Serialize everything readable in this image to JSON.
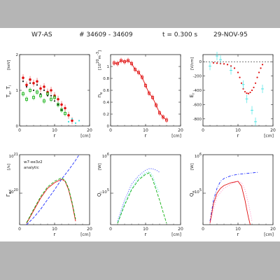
{
  "header": {
    "device": "W7-AS",
    "shot": "# 34609 - 34609",
    "time": "t = 0.300 s",
    "date": "29-NOV-95"
  },
  "chart_data": [
    {
      "id": "temp",
      "type": "scatter",
      "ylabel_main": "T",
      "ylabel_sub1": "e",
      "ylabel_mid": ", T",
      "ylabel_sub2": "i",
      "yunit": "[keV]",
      "xlabel": "r",
      "xunit": "[cm]",
      "xlim": [
        0,
        20
      ],
      "ylim": [
        0,
        2
      ],
      "xticks": [
        0,
        10,
        20
      ],
      "yticks": [
        0,
        1,
        2
      ],
      "series": [
        {
          "color": "#e01010",
          "marker": "circle",
          "x": [
            1,
            2,
            3,
            4,
            5,
            6,
            7,
            8,
            9,
            10,
            11,
            12,
            13,
            14,
            15
          ],
          "y": [
            1.35,
            1.15,
            1.3,
            1.2,
            1.25,
            1.05,
            1.1,
            0.95,
            1.0,
            0.85,
            0.75,
            0.6,
            0.5,
            0.3,
            0.15
          ]
        },
        {
          "color": "#10b010",
          "marker": "square",
          "x": [
            1,
            2,
            3,
            4,
            5,
            6,
            7,
            8,
            9,
            10,
            11,
            12,
            13
          ],
          "y": [
            0.9,
            0.75,
            1.0,
            0.8,
            0.95,
            0.85,
            0.7,
            0.9,
            0.75,
            0.8,
            0.6,
            0.45,
            0.35
          ]
        },
        {
          "color": "#222222",
          "marker": "dot",
          "x": [
            1,
            2,
            3,
            4,
            5,
            6,
            7,
            8,
            9,
            10,
            11,
            12
          ],
          "y": [
            1.25,
            1.1,
            1.2,
            1.0,
            1.15,
            0.9,
            1.0,
            0.85,
            0.85,
            0.7,
            0.6,
            0.45
          ]
        },
        {
          "color": "#30e0e0",
          "marker": "dot",
          "x": [
            14,
            15,
            16,
            17
          ],
          "y": [
            0.12,
            0.2,
            0.08,
            0.15
          ]
        }
      ]
    },
    {
      "id": "density",
      "type": "line",
      "ylabel_main": "n",
      "ylabel_sub1": "e",
      "yunit": "[10",
      "yunit_exp": "20",
      "yunit_tail": "m",
      "yunit_tail_exp": "-3",
      "yunit_close": "]",
      "xlabel": "r",
      "xunit": "[cm]",
      "xlim": [
        0,
        20
      ],
      "ylim": [
        0,
        1.2
      ],
      "xticks": [
        0,
        10,
        20
      ],
      "yticks": [
        0,
        0.2,
        0.4,
        0.6,
        0.8,
        1
      ],
      "series": [
        {
          "color": "#e01010",
          "marker": "square",
          "x": [
            1,
            2,
            3,
            4,
            5,
            6,
            7,
            8,
            9,
            10,
            11,
            12,
            13,
            14,
            15,
            16
          ],
          "y": [
            1.06,
            1.05,
            1.1,
            1.08,
            1.1,
            1.05,
            0.95,
            0.9,
            0.82,
            0.68,
            0.55,
            0.48,
            0.35,
            0.22,
            0.15,
            0.1
          ]
        }
      ]
    },
    {
      "id": "efield",
      "type": "scatter",
      "ylabel_main": "E",
      "ylabel_sub1": "r",
      "yunit": "[V/cm]",
      "xlabel": "r",
      "xunit": "[cm]",
      "xlim": [
        0,
        20
      ],
      "ylim": [
        -900,
        100
      ],
      "xticks": [
        0,
        10,
        20
      ],
      "yticks": [
        -800,
        -600,
        -400,
        -200,
        0
      ],
      "reference_line": 0,
      "series": [
        {
          "color": "#e01010",
          "marker": "dot",
          "x": [
            3,
            4,
            5,
            6,
            7,
            8,
            9,
            10,
            10.5,
            11,
            11.5,
            12,
            12.5,
            13,
            13.5,
            14,
            14.5,
            15,
            15.5,
            16,
            16.5,
            17
          ],
          "y": [
            -15,
            -20,
            -25,
            -30,
            -40,
            -60,
            -90,
            -150,
            -220,
            -300,
            -380,
            -420,
            -440,
            -445,
            -430,
            -400,
            -360,
            -300,
            -220,
            -150,
            -90,
            -40
          ]
        },
        {
          "color": "#30e0e0",
          "marker": "cross",
          "x": [
            2,
            4,
            5,
            8,
            11.5,
            12.5,
            14,
            15,
            17
          ],
          "y": [
            -60,
            80,
            30,
            -120,
            -320,
            -520,
            -680,
            -840,
            -380
          ]
        }
      ]
    },
    {
      "id": "gamma",
      "type": "line",
      "ylabel_main": "Γ",
      "ylabel_sub1": "e,i",
      "yunit": "[/s]",
      "ytop": "10",
      "ytop_exp": "21",
      "ymid": "10",
      "ymid_exp": "20",
      "xlabel": "r",
      "xunit": "[cm]",
      "xlim": [
        0,
        20
      ],
      "ylim": [
        0,
        1
      ],
      "xticks": [
        0,
        10,
        20
      ],
      "legend_lines": [
        "w7-ee3z2",
        "analytic"
      ],
      "series": [
        {
          "color": "#e01010",
          "style": "solid",
          "x": [
            2,
            4,
            6,
            8,
            10,
            12,
            13,
            14,
            15,
            16
          ],
          "y": [
            0.02,
            0.2,
            0.38,
            0.52,
            0.6,
            0.65,
            0.62,
            0.5,
            0.3,
            0.05
          ]
        },
        {
          "color": "#10b010",
          "style": "dashed",
          "x": [
            2,
            4,
            6,
            8,
            10,
            12,
            13,
            14,
            15,
            16
          ],
          "y": [
            0.03,
            0.22,
            0.4,
            0.54,
            0.62,
            0.67,
            0.63,
            0.52,
            0.32,
            0.08
          ]
        },
        {
          "color": "#2030ff",
          "style": "dashed",
          "x": [
            2,
            4,
            6,
            8,
            10,
            12,
            14,
            16,
            17
          ],
          "y": [
            0.0,
            0.1,
            0.22,
            0.36,
            0.5,
            0.65,
            0.78,
            0.92,
            1.0
          ]
        }
      ]
    },
    {
      "id": "qi",
      "type": "line",
      "ylabel_main": "Q",
      "ylabel_sub1": "i",
      "yunit": "[W]",
      "ytop": "10",
      "ytop_exp": "6",
      "ymid": "10",
      "ymid_exp": "5",
      "xlabel": "r",
      "xunit": "[cm]",
      "xlim": [
        0,
        20
      ],
      "ylim": [
        0,
        1
      ],
      "xticks": [
        0,
        10,
        20
      ],
      "series": [
        {
          "color": "#2030ff",
          "style": "dotted",
          "x": [
            2,
            4,
            6,
            8,
            10,
            11,
            12,
            13,
            14
          ],
          "y": [
            0.05,
            0.35,
            0.58,
            0.7,
            0.78,
            0.8,
            0.8,
            0.78,
            0.75
          ]
        },
        {
          "color": "#30e0e0",
          "style": "dotted",
          "x": [
            2,
            4,
            6,
            8,
            10,
            11,
            12,
            13,
            14
          ],
          "y": [
            0.03,
            0.3,
            0.52,
            0.66,
            0.74,
            0.76,
            0.7,
            0.55,
            0.45
          ]
        },
        {
          "color": "#10b010",
          "style": "dashed",
          "x": [
            2,
            4,
            6,
            8,
            10,
            11,
            12,
            13,
            14,
            15,
            16
          ],
          "y": [
            0.02,
            0.28,
            0.5,
            0.64,
            0.72,
            0.74,
            0.65,
            0.5,
            0.35,
            0.18,
            0.02
          ]
        }
      ]
    },
    {
      "id": "qe",
      "type": "line",
      "ylabel_main": "Q",
      "ylabel_sub1": "e",
      "yunit": "[W]",
      "ytop": "10",
      "ytop_exp": "6",
      "ymid": "10",
      "ymid_exp": "5",
      "xlabel": "r",
      "xunit": "[cm]",
      "xlim": [
        0,
        20
      ],
      "ylim": [
        0,
        1
      ],
      "xticks": [
        0,
        10,
        20
      ],
      "series": [
        {
          "color": "#2030ff",
          "style": "dashdot",
          "x": [
            2,
            3,
            4,
            5,
            6,
            8,
            10,
            12,
            14,
            16
          ],
          "y": [
            0.05,
            0.35,
            0.52,
            0.62,
            0.66,
            0.7,
            0.72,
            0.73,
            0.74,
            0.75
          ]
        },
        {
          "color": "#e01010",
          "style": "solid",
          "x": [
            2,
            3,
            4,
            5,
            6,
            8,
            10,
            11,
            12,
            12.5,
            13,
            13.5
          ],
          "y": [
            0.02,
            0.3,
            0.45,
            0.52,
            0.56,
            0.6,
            0.62,
            0.55,
            0.35,
            0.22,
            0.1,
            0.0
          ]
        },
        {
          "color": "#ff80c0",
          "style": "dotted",
          "x": [
            2,
            4,
            6,
            8,
            10,
            11,
            12,
            13,
            14
          ],
          "y": [
            0.02,
            0.4,
            0.52,
            0.58,
            0.62,
            0.6,
            0.5,
            0.3,
            0.05
          ]
        }
      ]
    }
  ]
}
